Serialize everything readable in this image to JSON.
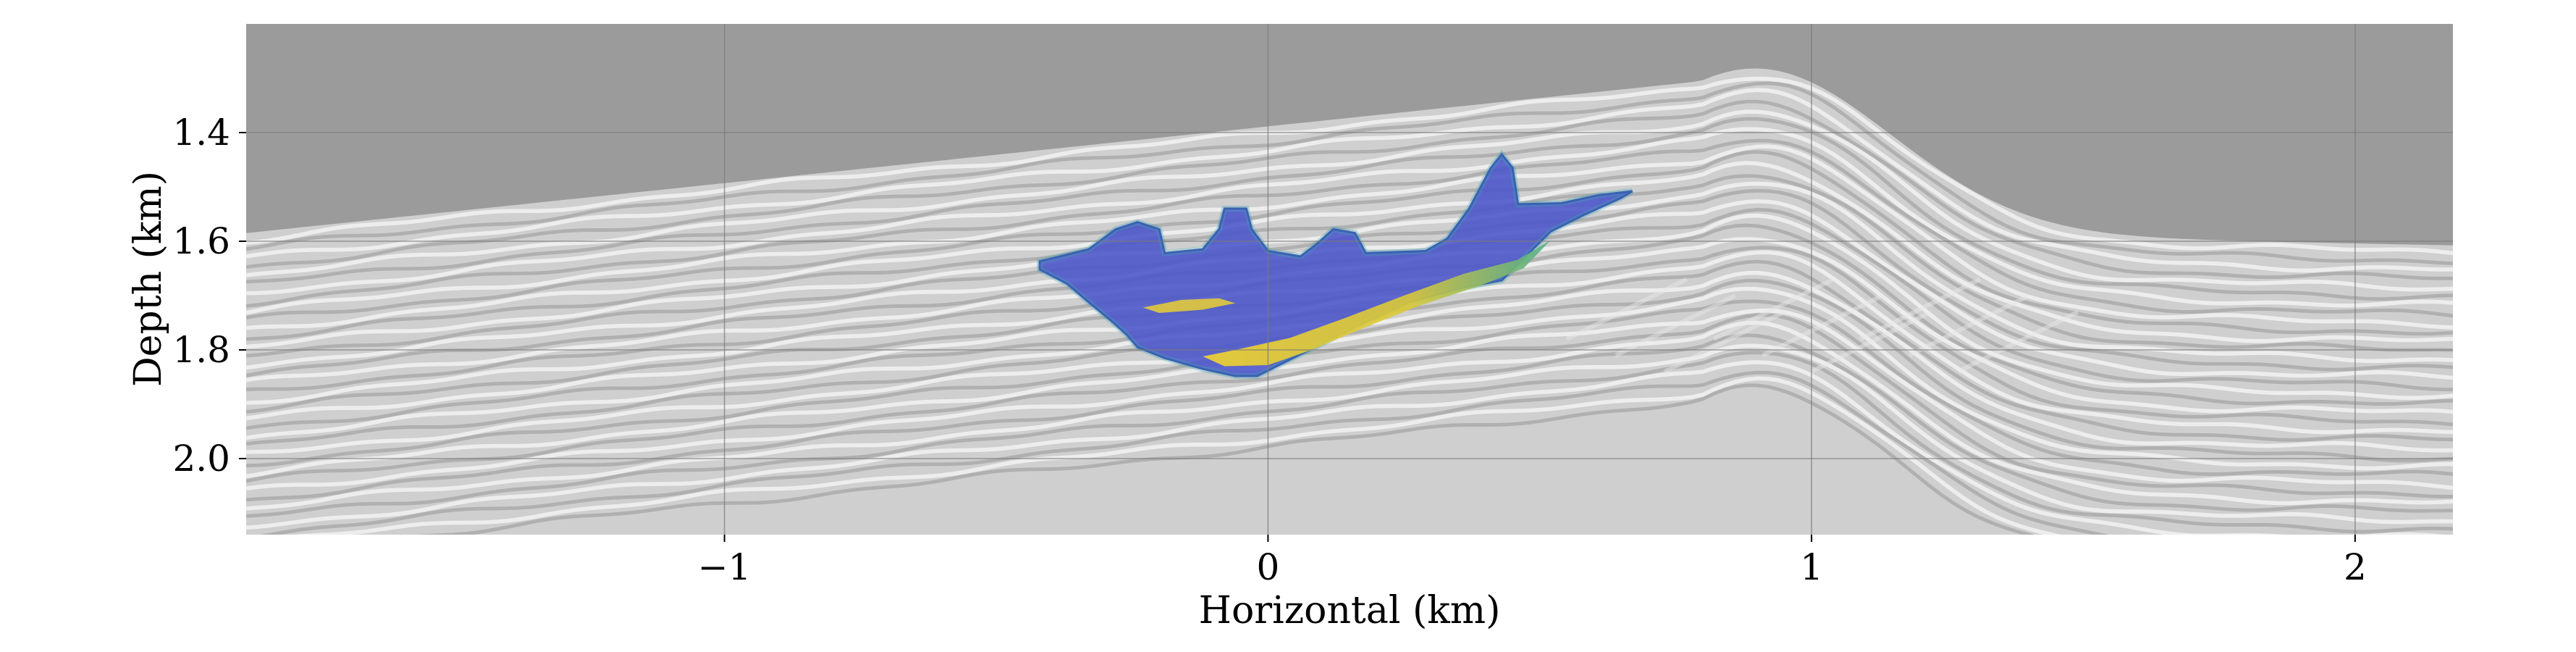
{
  "chart_data": {
    "type": "heatmap",
    "title": "",
    "xlabel": "Horizontal (km)",
    "ylabel": "Depth (km)",
    "xlim": [
      -1.88,
      2.18
    ],
    "ylim": [
      2.14,
      1.2
    ],
    "y_inverted": true,
    "grid": true,
    "x_ticks": [
      -1,
      0,
      1,
      2
    ],
    "x_tick_labels": [
      "−1",
      "0",
      "1",
      "2"
    ],
    "y_ticks": [
      1.4,
      1.6,
      1.8,
      2.0
    ],
    "y_tick_labels": [
      "1.4",
      "1.6",
      "1.8",
      "2.0"
    ],
    "background": "grayscale seismic depth image with layered reflectors",
    "overlay": {
      "colormap": "viridis",
      "opacity": 0.6,
      "outline": [
        [
          -0.42,
          1.637
        ],
        [
          -0.33,
          1.615
        ],
        [
          -0.28,
          1.578
        ],
        [
          -0.24,
          1.565
        ],
        [
          -0.2,
          1.578
        ],
        [
          -0.19,
          1.622
        ],
        [
          -0.12,
          1.615
        ],
        [
          -0.09,
          1.578
        ],
        [
          -0.08,
          1.54
        ],
        [
          -0.04,
          1.54
        ],
        [
          -0.03,
          1.578
        ],
        [
          0.0,
          1.618
        ],
        [
          0.06,
          1.628
        ],
        [
          0.09,
          1.605
        ],
        [
          0.12,
          1.578
        ],
        [
          0.16,
          1.585
        ],
        [
          0.18,
          1.622
        ],
        [
          0.29,
          1.618
        ],
        [
          0.33,
          1.595
        ],
        [
          0.37,
          1.54
        ],
        [
          0.41,
          1.465
        ],
        [
          0.43,
          1.44
        ],
        [
          0.45,
          1.465
        ],
        [
          0.46,
          1.532
        ],
        [
          0.54,
          1.53
        ],
        [
          0.61,
          1.515
        ],
        [
          0.67,
          1.508
        ],
        [
          0.65,
          1.52
        ],
        [
          0.58,
          1.552
        ],
        [
          0.52,
          1.582
        ],
        [
          0.47,
          1.632
        ],
        [
          0.43,
          1.672
        ],
        [
          0.36,
          1.685
        ],
        [
          0.26,
          1.712
        ],
        [
          0.16,
          1.758
        ],
        [
          0.08,
          1.798
        ],
        [
          0.02,
          1.828
        ],
        [
          -0.02,
          1.848
        ],
        [
          -0.06,
          1.848
        ],
        [
          -0.12,
          1.835
        ],
        [
          -0.19,
          1.815
        ],
        [
          -0.24,
          1.795
        ],
        [
          -0.26,
          1.772
        ],
        [
          -0.29,
          1.745
        ],
        [
          -0.33,
          1.712
        ],
        [
          -0.37,
          1.678
        ],
        [
          -0.42,
          1.652
        ]
      ],
      "high_band": [
        [
          0.52,
          1.598
        ],
        [
          0.46,
          1.634
        ],
        [
          0.36,
          1.66
        ],
        [
          0.25,
          1.7
        ],
        [
          0.14,
          1.742
        ],
        [
          0.04,
          1.778
        ],
        [
          -0.06,
          1.8
        ],
        [
          -0.12,
          1.812
        ],
        [
          -0.08,
          1.83
        ],
        [
          0.0,
          1.828
        ],
        [
          0.08,
          1.8
        ],
        [
          0.17,
          1.762
        ],
        [
          0.28,
          1.718
        ],
        [
          0.39,
          1.682
        ],
        [
          0.47,
          1.65
        ]
      ],
      "streak": [
        [
          -0.23,
          1.722
        ],
        [
          -0.16,
          1.708
        ],
        [
          -0.09,
          1.705
        ],
        [
          -0.06,
          1.714
        ],
        [
          -0.12,
          1.726
        ],
        [
          -0.2,
          1.732
        ]
      ]
    }
  }
}
